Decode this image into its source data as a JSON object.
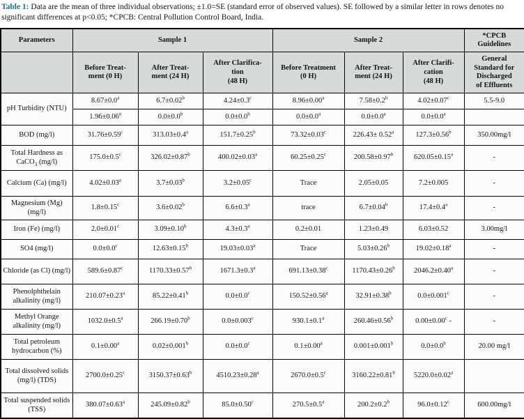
{
  "caption": {
    "label": "Table 1:",
    "text": "Data are the mean of three individual observations; ±1.0=SE (standard error of observed values). SE followed by a similar letter in rows denotes no significant differences at p<0.05; *CPCB: Central Pollution Control Board, India."
  },
  "colors": {
    "caption_accent": "#1d6b8a",
    "header_bg": "#d6dad6",
    "border": "#000000"
  },
  "table": {
    "header": {
      "parameters": "Parameters",
      "sample1": "Sample 1",
      "sample2": "Sample 2",
      "cpcb_guidelines": "*CPCB\nGuidelines",
      "subheaders": [
        "Before Treat-\nment (0 H)",
        "After Treat-\nment (24 H)",
        "After Clarifica-\ntion\n(48 H)",
        "Before Treatment\n(0 H)",
        "After Treat-\nment (24 H)",
        "After Clarifi-\ncation\n(48 H)",
        "General\nStandard for\nDischarged\nof Effluents"
      ]
    },
    "rows": [
      {
        "param": "pH Turbidity (NTU)",
        "rowspan": 2,
        "cells": [
          "8.67±0.0^{a}",
          "6.7±0.02^{b}",
          "4.24±0.3^{c}",
          "8.96±0.00^{a}",
          "7.58±0.2^{b}",
          "4.02±0.07^{c}"
        ],
        "guideline": "5.5-9.0"
      },
      {
        "param": null,
        "cells": [
          "1.96±0.06^{a}",
          "0.0±0.0^{b}",
          "0.0±0.0^{b}",
          "0.0±0.0^{a}",
          "0.0±0.0^{a}",
          "0.0±0.0^{a}"
        ],
        "guideline": ""
      },
      {
        "param": "BOD (mg/l)",
        "cells": [
          "31.76±0.59^{c}",
          "313.03±0.4^{a}",
          "151.7±0.25^{b}",
          "73.32±0.03^{c}",
          "226.43± 0.52^{a}",
          "127.3±0.56^{b}"
        ],
        "guideline": "350.00mg/l"
      },
      {
        "param": "Total Hardness as CaCO_{3} (mg/l)",
        "cells": [
          "175.0±0.5^{c}",
          "326.02±0.87^{b}",
          "400.02±0.03^{a}",
          "60.25±0.25^{c}",
          "200.58±0.97^{b}",
          "620.05±0.15^{a}"
        ],
        "guideline": "-"
      },
      {
        "param": "Calcium (Ca) (mg/l)",
        "cells": [
          "4.02±0.03^{a}",
          "3.7±0.03^{b}",
          "3.2±0.05^{c}",
          "Trace",
          "2.05±0.05",
          "7.2±0.005"
        ],
        "guideline": "-"
      },
      {
        "param": "Magnesium (Mg) (mg/l)",
        "cells": [
          "1.8±0.15^{c}",
          "3.6±0.02^{b}",
          "6.6±0.3^{a}",
          "trace",
          "6.7±0.04^{b}",
          "17.4±0.4^{a}"
        ],
        "guideline": "-"
      },
      {
        "param": "Iron (Fe) (mg/l)",
        "cells": [
          "2.0±0.01^{c}",
          "3.09±0.10^{b}",
          "4.3±0.3^{a}",
          "0.2±0.01",
          "1.23±0.49",
          "6.03±0.52"
        ],
        "guideline": "3.00mg/l"
      },
      {
        "param": "SO4 (mg/l)",
        "cells": [
          "0.0±0.0^{c}",
          "12.63±0.15^{b}",
          "19.03±0.03^{a}",
          "Trace",
          "5.03±0.26^{b}",
          "19.02±0.18^{a}"
        ],
        "guideline": "-"
      },
      {
        "param": "Chloride (as Cl) (mg/l)",
        "cells": [
          "589.6±0.87^{c}",
          "1170.33±0.57^{b}",
          "1671.3±0.3^{a}",
          "691.13±0.38^{c}",
          "1170.43±0.26^{b}",
          "2046.2±0.40^{a}"
        ],
        "guideline": "-"
      },
      {
        "param": "Phenolphthelain alkalinity (mg/l)",
        "cells": [
          "210.07±0.23^{a}",
          "85.22±0.41^{b}",
          "0.0±0.0^{c}",
          "150.52±0.56^{a}",
          "32.91±0.38^{b}",
          "0.0±0.001^{c}"
        ],
        "guideline": "-"
      },
      {
        "param": "Methyl Orange alkalinity (mg/l)",
        "cells": [
          "1032.0±0.5^{a}",
          "266.19±0.70^{b}",
          "0.0±0.003^{c}",
          "930.1±0.1^{a}",
          "260.46±0.56^{b}",
          "0.00±0.00^{c} -"
        ],
        "guideline": "-"
      },
      {
        "param": "Total petroleum hydrocarbon (%)",
        "cells": [
          "0.1±0.00^{a}",
          "0.02±0.001^{b}",
          "0.0±0.0^{c}",
          "0.1±0.00^{a}",
          "0.001±0.001^{b}",
          "0.0±0.0^{b}"
        ],
        "guideline": "20.00 mg/l"
      },
      {
        "param": "Total dissolved solids (mg/l) (TDS)",
        "cells": [
          "2700.0±0.25^{c}",
          "3150.37±0.63^{b}",
          "4510.23±0.28^{a}",
          "2670.0±0.5^{c}",
          "3160.22±0.81^{b}",
          "5220.0±0.02^{a}"
        ],
        "guideline": ""
      },
      {
        "param": "Total suspended solids (TSS)",
        "cells": [
          "380.07±0.63^{a}",
          "245.09±0.82^{b}",
          "85.0±0.50^{c}",
          "270.5±0.5^{a}",
          "200.2±0.2^{b}",
          "96.0±0.12^{c}"
        ],
        "guideline": "600.00mg/l"
      }
    ]
  }
}
